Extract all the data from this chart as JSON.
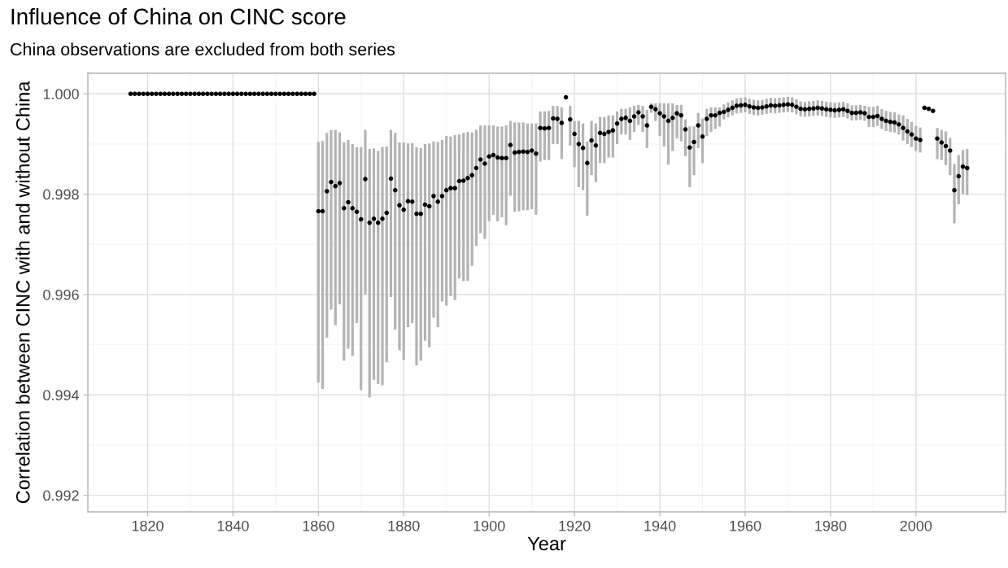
{
  "chart_data": {
    "type": "scatter",
    "title": "Influence of China on CINC score",
    "subtitle": "China observations are excluded from both series",
    "xlabel": "Year",
    "ylabel": "Correlation between CINC with and without China",
    "x": [
      1816,
      1817,
      1818,
      1819,
      1820,
      1821,
      1822,
      1823,
      1824,
      1825,
      1826,
      1827,
      1828,
      1829,
      1830,
      1831,
      1832,
      1833,
      1834,
      1835,
      1836,
      1837,
      1838,
      1839,
      1840,
      1841,
      1842,
      1843,
      1844,
      1845,
      1846,
      1847,
      1848,
      1849,
      1850,
      1851,
      1852,
      1853,
      1854,
      1855,
      1856,
      1857,
      1858,
      1859,
      1860,
      1861,
      1862,
      1863,
      1864,
      1865,
      1866,
      1867,
      1868,
      1869,
      1870,
      1871,
      1872,
      1873,
      1874,
      1875,
      1876,
      1877,
      1878,
      1879,
      1880,
      1881,
      1882,
      1883,
      1884,
      1885,
      1886,
      1887,
      1888,
      1889,
      1890,
      1891,
      1892,
      1893,
      1894,
      1895,
      1896,
      1897,
      1898,
      1899,
      1900,
      1901,
      1902,
      1903,
      1904,
      1905,
      1906,
      1907,
      1908,
      1909,
      1910,
      1911,
      1912,
      1913,
      1914,
      1915,
      1916,
      1917,
      1918,
      1919,
      1920,
      1921,
      1922,
      1923,
      1924,
      1925,
      1926,
      1927,
      1928,
      1929,
      1930,
      1931,
      1932,
      1933,
      1934,
      1935,
      1936,
      1937,
      1938,
      1939,
      1940,
      1941,
      1942,
      1943,
      1944,
      1945,
      1946,
      1947,
      1948,
      1949,
      1950,
      1951,
      1952,
      1953,
      1954,
      1955,
      1956,
      1957,
      1958,
      1959,
      1960,
      1961,
      1962,
      1963,
      1964,
      1965,
      1966,
      1967,
      1968,
      1969,
      1970,
      1971,
      1972,
      1973,
      1974,
      1975,
      1976,
      1977,
      1978,
      1979,
      1980,
      1981,
      1982,
      1983,
      1984,
      1985,
      1986,
      1987,
      1988,
      1989,
      1990,
      1991,
      1992,
      1993,
      1994,
      1995,
      1996,
      1997,
      1998,
      1999,
      2000,
      2001,
      2002,
      2003,
      2004,
      2005,
      2006,
      2007,
      2008,
      2009,
      2010,
      2011,
      2012
    ],
    "values": [
      1.0,
      1.0,
      1.0,
      1.0,
      1.0,
      1.0,
      1.0,
      1.0,
      1.0,
      1.0,
      1.0,
      1.0,
      1.0,
      1.0,
      1.0,
      1.0,
      1.0,
      1.0,
      1.0,
      1.0,
      1.0,
      1.0,
      1.0,
      1.0,
      1.0,
      1.0,
      1.0,
      1.0,
      1.0,
      1.0,
      1.0,
      1.0,
      1.0,
      1.0,
      1.0,
      1.0,
      1.0,
      1.0,
      1.0,
      1.0,
      1.0,
      1.0,
      1.0,
      1.0,
      0.99766,
      0.99766,
      0.99806,
      0.99824,
      0.99816,
      0.99822,
      0.99772,
      0.99784,
      0.99772,
      0.99765,
      0.9975,
      0.9983,
      0.99743,
      0.99751,
      0.99743,
      0.99751,
      0.99763,
      0.99831,
      0.99808,
      0.99778,
      0.99769,
      0.99786,
      0.99785,
      0.99761,
      0.99761,
      0.99779,
      0.99776,
      0.99796,
      0.99785,
      0.99796,
      0.99808,
      0.99812,
      0.99812,
      0.99826,
      0.99827,
      0.99832,
      0.99838,
      0.99852,
      0.99869,
      0.99861,
      0.99875,
      0.99878,
      0.99873,
      0.99872,
      0.99872,
      0.99898,
      0.99883,
      0.99884,
      0.99885,
      0.99884,
      0.99887,
      0.99881,
      0.99932,
      0.99931,
      0.99932,
      0.99951,
      0.9995,
      0.99942,
      0.99993,
      0.99949,
      0.9992,
      0.999,
      0.99892,
      0.99862,
      0.99907,
      0.99897,
      0.99922,
      0.9992,
      0.99924,
      0.99927,
      0.99941,
      0.9995,
      0.99952,
      0.99946,
      0.99955,
      0.99963,
      0.99955,
      0.99937,
      0.99974,
      0.99969,
      0.99961,
      0.99955,
      0.99946,
      0.99952,
      0.99961,
      0.99957,
      0.99929,
      0.99893,
      0.99904,
      0.99937,
      0.99915,
      0.9995,
      0.99957,
      0.99957,
      0.99962,
      0.99964,
      0.99968,
      0.99972,
      0.99976,
      0.99977,
      0.99978,
      0.99975,
      0.99973,
      0.99972,
      0.99973,
      0.99975,
      0.99977,
      0.99976,
      0.99977,
      0.99978,
      0.99979,
      0.99978,
      0.99974,
      0.9997,
      0.99969,
      0.9997,
      0.99971,
      0.99972,
      0.99971,
      0.99969,
      0.99968,
      0.99967,
      0.99968,
      0.99969,
      0.99966,
      0.99962,
      0.99962,
      0.99963,
      0.99961,
      0.99954,
      0.99954,
      0.99956,
      0.9995,
      0.99946,
      0.99944,
      0.99943,
      0.99939,
      0.99932,
      0.99925,
      0.99919,
      0.99911,
      0.99908,
      0.99972,
      0.9997,
      0.99966,
      0.99911,
      0.99903,
      0.99896,
      0.99887,
      0.99808,
      0.99836,
      0.99855,
      0.99852
    ],
    "errors": [
      null,
      null,
      null,
      null,
      null,
      null,
      null,
      null,
      null,
      null,
      null,
      null,
      null,
      null,
      null,
      null,
      null,
      null,
      null,
      null,
      null,
      null,
      null,
      null,
      null,
      null,
      null,
      null,
      null,
      null,
      null,
      null,
      null,
      null,
      null,
      null,
      null,
      null,
      null,
      null,
      null,
      null,
      null,
      null,
      [
        0.99425,
        0.99904
      ],
      [
        0.99412,
        0.99906
      ],
      [
        0.99514,
        0.99922
      ],
      [
        0.9957,
        0.99928
      ],
      [
        0.99539,
        0.99928
      ],
      [
        0.99581,
        0.99923
      ],
      [
        0.99468,
        0.99903
      ],
      [
        0.99492,
        0.99908
      ],
      [
        0.99478,
        0.999
      ],
      [
        0.99543,
        0.99894
      ],
      [
        0.9941,
        0.99894
      ],
      [
        0.996,
        0.99928
      ],
      [
        0.99395,
        0.9989
      ],
      [
        0.9943,
        0.99891
      ],
      [
        0.99422,
        0.99886
      ],
      [
        0.99419,
        0.99894
      ],
      [
        0.99465,
        0.99895
      ],
      [
        0.99595,
        0.99928
      ],
      [
        0.9953,
        0.99922
      ],
      [
        0.99489,
        0.99903
      ],
      [
        0.9947,
        0.99903
      ],
      [
        0.99535,
        0.99901
      ],
      [
        0.99543,
        0.99902
      ],
      [
        0.99459,
        0.99894
      ],
      [
        0.99468,
        0.99892
      ],
      [
        0.99508,
        0.999
      ],
      [
        0.99495,
        0.99901
      ],
      [
        0.99554,
        0.99905
      ],
      [
        0.99535,
        0.99904
      ],
      [
        0.99586,
        0.99908
      ],
      [
        0.99578,
        0.99916
      ],
      [
        0.99597,
        0.99915
      ],
      [
        0.99589,
        0.99918
      ],
      [
        0.99632,
        0.99919
      ],
      [
        0.99627,
        0.99922
      ],
      [
        0.99627,
        0.99924
      ],
      [
        0.99657,
        0.99923
      ],
      [
        0.99697,
        0.99928
      ],
      [
        0.99722,
        0.99937
      ],
      [
        0.99711,
        0.99937
      ],
      [
        0.99746,
        0.99937
      ],
      [
        0.99759,
        0.99937
      ],
      [
        0.99746,
        0.99935
      ],
      [
        0.99754,
        0.99935
      ],
      [
        0.99738,
        0.99937
      ],
      [
        0.99797,
        0.99946
      ],
      [
        0.99765,
        0.99943
      ],
      [
        0.99766,
        0.99943
      ],
      [
        0.99768,
        0.99943
      ],
      [
        0.99768,
        0.99941
      ],
      [
        0.9977,
        0.99941
      ],
      [
        0.99759,
        0.99941
      ],
      [
        0.99865,
        0.99965
      ],
      [
        0.99868,
        0.99965
      ],
      [
        0.99868,
        0.99966
      ],
      [
        0.999,
        0.99976
      ],
      [
        0.999,
        0.99976
      ],
      [
        0.9987,
        0.99973
      ],
      null,
      [
        0.99897,
        0.99976
      ],
      [
        0.99854,
        0.99946
      ],
      [
        0.99814,
        0.99946
      ],
      [
        0.99808,
        0.99941
      ],
      [
        0.99757,
        0.99905
      ],
      [
        0.99838,
        0.99946
      ],
      [
        0.99824,
        0.99941
      ],
      [
        0.99862,
        0.99954
      ],
      [
        0.99862,
        0.99954
      ],
      [
        0.99873,
        0.99957
      ],
      [
        0.99873,
        0.99957
      ],
      [
        0.999,
        0.99965
      ],
      [
        0.99919,
        0.9997
      ],
      [
        0.99919,
        0.9997
      ],
      [
        0.99908,
        0.99973
      ],
      [
        0.99924,
        0.99976
      ],
      [
        0.99938,
        0.99978
      ],
      [
        0.99924,
        0.99976
      ],
      [
        0.99892,
        0.99968
      ],
      [
        0.99962,
        0.99981
      ],
      [
        0.99946,
        0.99981
      ],
      [
        0.99916,
        0.99981
      ],
      [
        0.99895,
        0.99981
      ],
      [
        0.99859,
        0.99981
      ],
      [
        0.99886,
        0.99981
      ],
      [
        0.99911,
        0.99978
      ],
      [
        0.99905,
        0.99978
      ],
      [
        0.99876,
        0.99949
      ],
      [
        0.99814,
        0.99935
      ],
      [
        0.99838,
        0.99935
      ],
      [
        0.99892,
        0.99962
      ],
      [
        0.99862,
        0.99951
      ],
      [
        0.99916,
        0.9997
      ],
      [
        0.99924,
        0.99973
      ],
      [
        0.9993,
        0.99973
      ],
      [
        0.99935,
        0.99973
      ],
      0.00015,
      0.00015,
      0.00015,
      0.00015,
      0.00015,
      0.00015,
      0.00015,
      0.00015,
      0.00015,
      0.00015,
      0.00015,
      0.00015,
      0.00015,
      0.00015,
      0.00015,
      0.00015,
      0.00015,
      0.00015,
      0.00015,
      0.00015,
      0.00015,
      0.00015,
      0.00015,
      0.00015,
      0.00015,
      0.00015,
      0.00015,
      0.00015,
      0.00015,
      0.00015,
      0.00015,
      0.00015,
      0.00015,
      0.00015,
      0.0002,
      0.0002,
      0.0002,
      0.0002,
      0.0002,
      0.0002,
      0.0002,
      0.0002,
      0.00025,
      0.00025,
      0.00025,
      0.00025,
      0.00025,
      null,
      null,
      null,
      [
        0.9987,
        0.99932
      ],
      [
        0.99868,
        0.99928
      ],
      [
        0.99858,
        0.99925
      ],
      [
        0.99838,
        0.99912
      ],
      [
        0.99742,
        0.9986
      ],
      [
        0.9978,
        0.99878
      ],
      [
        0.998,
        0.99888
      ],
      [
        0.99798,
        0.9989
      ]
    ],
    "color": "#000000",
    "marker": "circle",
    "grid": true,
    "xlim": [
      1806,
      2021
    ],
    "xticks": [
      1820,
      1840,
      1860,
      1880,
      1900,
      1920,
      1940,
      1960,
      1980,
      2000
    ],
    "ylim": [
      0.99167,
      1.00041
    ],
    "yticks": [
      {
        "value": 0.992,
        "label": "0.992"
      },
      {
        "value": 0.994,
        "label": "0.994"
      },
      {
        "value": 0.996,
        "label": "0.996"
      },
      {
        "value": 0.998,
        "label": "0.998"
      },
      {
        "value": 1.0,
        "label": "1.000"
      }
    ]
  }
}
